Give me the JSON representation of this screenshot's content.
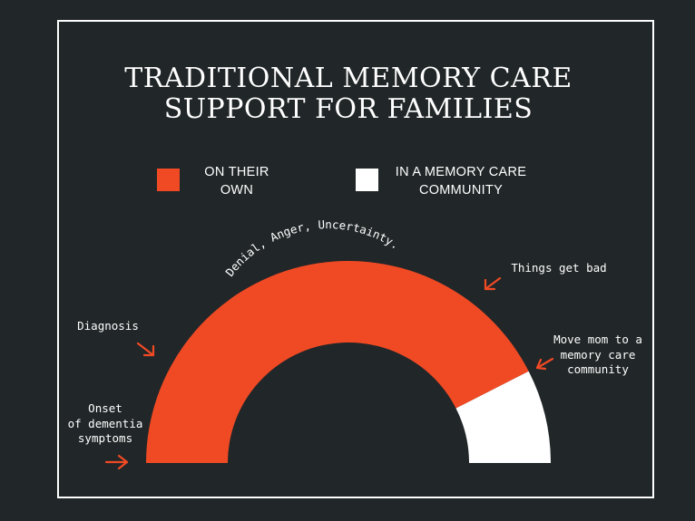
{
  "chart_data": {
    "type": "pie",
    "subtype": "semicircle-donut",
    "title_lines": [
      "TRADITIONAL MEMORY CARE",
      "SUPPORT FOR FAMILIES"
    ],
    "series": [
      {
        "name_lines": [
          "ON THEIR",
          "OWN"
        ],
        "value": 85,
        "color": "#f04a25"
      },
      {
        "name_lines": [
          "IN A MEMORY CARE",
          "COMMUNITY"
        ],
        "value": 15,
        "color": "#ffffff"
      }
    ],
    "legend_placement": "top",
    "annotations": {
      "onset": [
        "Onset",
        "of dementia",
        "symptoms"
      ],
      "diagnosis": [
        "Diagnosis"
      ],
      "denial": "Denial, Anger, Uncertainty.",
      "things_bad": [
        "Things get bad"
      ],
      "move_mom": [
        "Move mom to a",
        "memory care",
        "community"
      ]
    },
    "arrow_color": "#f04a25"
  },
  "colors": {
    "background": "#212628",
    "frame": "#ffffff",
    "text": "#ffffff"
  }
}
